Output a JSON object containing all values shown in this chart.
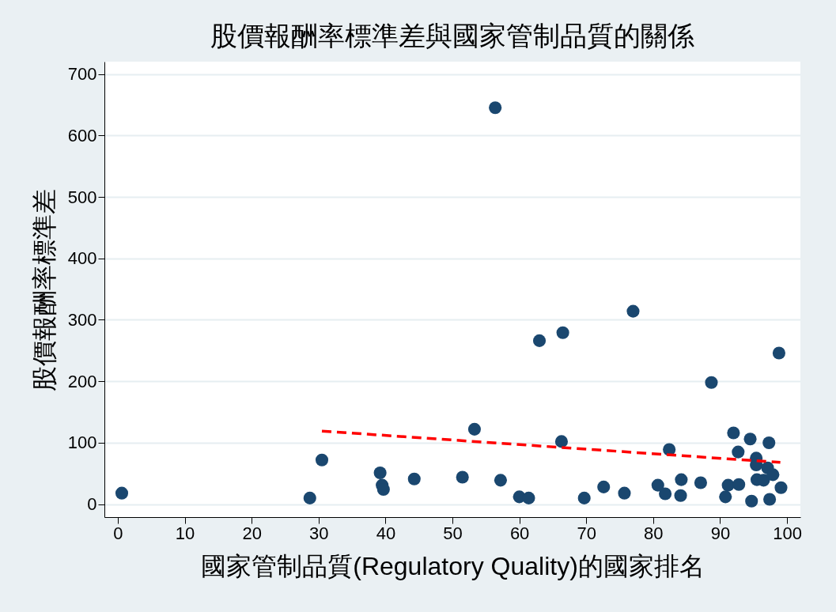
{
  "chart_data": {
    "type": "scatter",
    "title": "股價報酬率標準差與國家管制品質的關係",
    "xlabel": "國家管制品質(Regulatory Quality)的國家排名",
    "ylabel": "股價報酬率標準差",
    "xlim": [
      -2,
      102
    ],
    "xticks": [
      0,
      10,
      20,
      30,
      40,
      50,
      60,
      70,
      80,
      90,
      100
    ],
    "ylim": [
      -21,
      720
    ],
    "yticks": [
      0,
      100,
      200,
      300,
      400,
      500,
      600,
      700
    ],
    "grid": "y",
    "marker": "circle",
    "series": [
      {
        "color": "#1a476f",
        "x": [
          0.6,
          28.7,
          30.5,
          39.2,
          39.5,
          39.7,
          44.3,
          51.5,
          53.3,
          56.4,
          57.2,
          60.0,
          61.4,
          63.0,
          66.3,
          66.5,
          69.7,
          72.6,
          75.7,
          77.0,
          80.7,
          81.8,
          82.4,
          84.1,
          84.2,
          87.1,
          88.7,
          90.8,
          91.2,
          92.0,
          92.7,
          92.8,
          94.5,
          94.7,
          95.4,
          95.4,
          95.5,
          96.5,
          97.1,
          97.3,
          97.4,
          97.9,
          98.8,
          99.1
        ],
        "values": [
          18,
          10,
          72,
          51,
          31,
          24,
          41,
          44,
          122,
          645,
          39,
          12,
          10,
          266,
          102,
          279,
          10,
          28,
          18,
          314,
          31,
          17,
          89,
          14,
          40,
          35,
          198,
          12,
          31,
          116,
          85,
          32,
          106,
          5,
          75,
          64,
          40,
          39,
          59,
          100,
          8,
          48,
          246,
          27
        ]
      },
      {
        "type": "line",
        "color": "#ff0000",
        "line_style": "dashed",
        "marker": "none",
        "x": [
          30.5,
          99
        ],
        "values": [
          119,
          68
        ]
      }
    ]
  }
}
